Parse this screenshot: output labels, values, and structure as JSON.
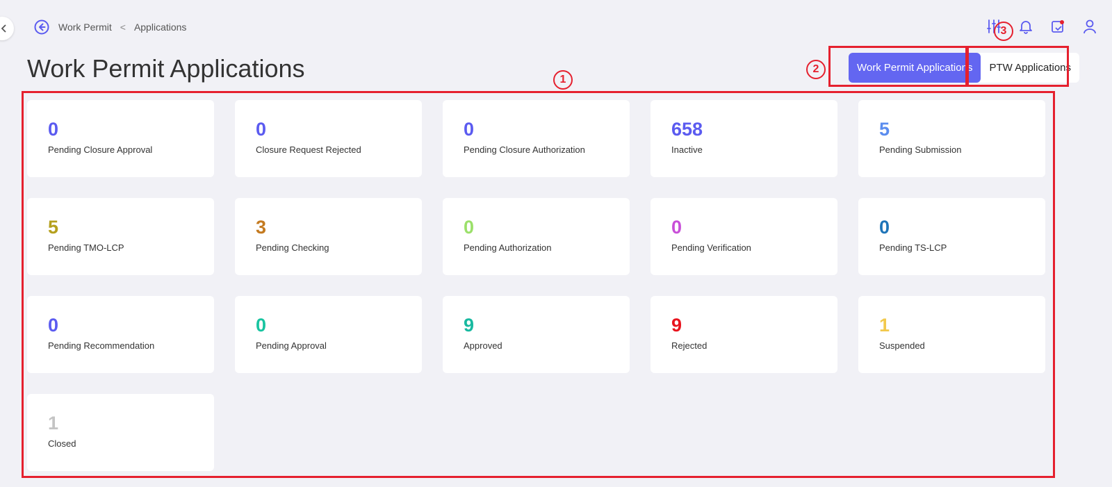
{
  "breadcrumb": {
    "root": "Work Permit",
    "separator": "<",
    "current": "Applications"
  },
  "page_title": "Work Permit Applications",
  "toggle": {
    "active": "Work Permit Applications",
    "inactive": "PTW Applications"
  },
  "header_icons": [
    "sliders-icon",
    "bell-icon",
    "calendar-check-icon",
    "user-icon"
  ],
  "cards": [
    {
      "value": "0",
      "label": "Pending Closure Approval",
      "color": "#5b5bf0"
    },
    {
      "value": "0",
      "label": "Closure Request Rejected",
      "color": "#5b5bf0"
    },
    {
      "value": "0",
      "label": "Pending Closure Authorization",
      "color": "#5b5bf0"
    },
    {
      "value": "658",
      "label": "Inactive",
      "color": "#5b5bf0"
    },
    {
      "value": "5",
      "label": "Pending Submission",
      "color": "#5b8def"
    },
    {
      "value": "5",
      "label": "Pending TMO-LCP",
      "color": "#b5a01e"
    },
    {
      "value": "3",
      "label": "Pending Checking",
      "color": "#c47a20"
    },
    {
      "value": "0",
      "label": "Pending Authorization",
      "color": "#9be06a"
    },
    {
      "value": "0",
      "label": "Pending Verification",
      "color": "#c84fd8"
    },
    {
      "value": "0",
      "label": "Pending TS-LCP",
      "color": "#1e74b8"
    },
    {
      "value": "0",
      "label": "Pending Recommendation",
      "color": "#5b5bf0"
    },
    {
      "value": "0",
      "label": "Pending Approval",
      "color": "#18c4a0"
    },
    {
      "value": "9",
      "label": "Approved",
      "color": "#18b9a0"
    },
    {
      "value": "9",
      "label": "Rejected",
      "color": "#e8141e"
    },
    {
      "value": "1",
      "label": "Suspended",
      "color": "#f2c94c"
    },
    {
      "value": "1",
      "label": "Closed",
      "color": "#c4c4c4"
    }
  ],
  "annotations": [
    "1",
    "2",
    "3"
  ],
  "annotation_color": "#e5202e"
}
